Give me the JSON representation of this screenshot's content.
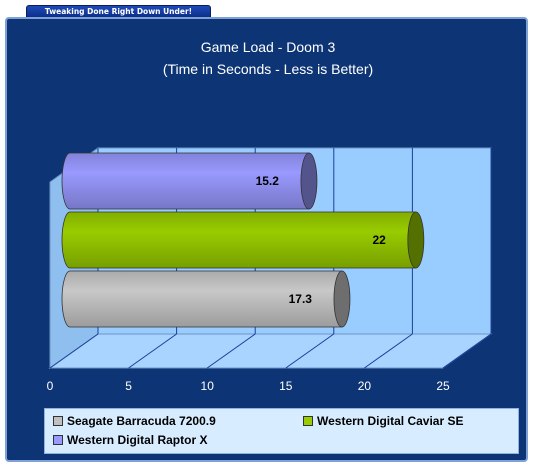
{
  "banner": "Tweaking Done Right Down Under!",
  "colors": {
    "panel": "#0d3575",
    "plot_wall": "#99ccff",
    "grid": "#1a3f9a",
    "axis_text": "#ffffff"
  },
  "chart_data": {
    "type": "bar",
    "orientation": "horizontal",
    "title": "Game Load - Doom 3",
    "subtitle": "(Time in Seconds - Less is Better)",
    "xlabel": "",
    "ylabel": "",
    "xlim": [
      0,
      25
    ],
    "xticks": [
      0,
      5,
      10,
      15,
      20,
      25
    ],
    "grid": true,
    "legend_position": "bottom",
    "series": [
      {
        "name": "Seagate Barracuda 7200.9",
        "value": 17.3,
        "label": "17.3",
        "color": "#c8c8c8",
        "legend_icon_color": "#c0c0c0"
      },
      {
        "name": "Western Digital Caviar SE",
        "value": 22,
        "label": "22",
        "color": "#99cc00",
        "legend_icon_color": "#99cc00"
      },
      {
        "name": "Western Digital Raptor X",
        "value": 15.2,
        "label": "15.2",
        "color": "#9999ff",
        "legend_icon_color": "#9999ff"
      }
    ]
  }
}
